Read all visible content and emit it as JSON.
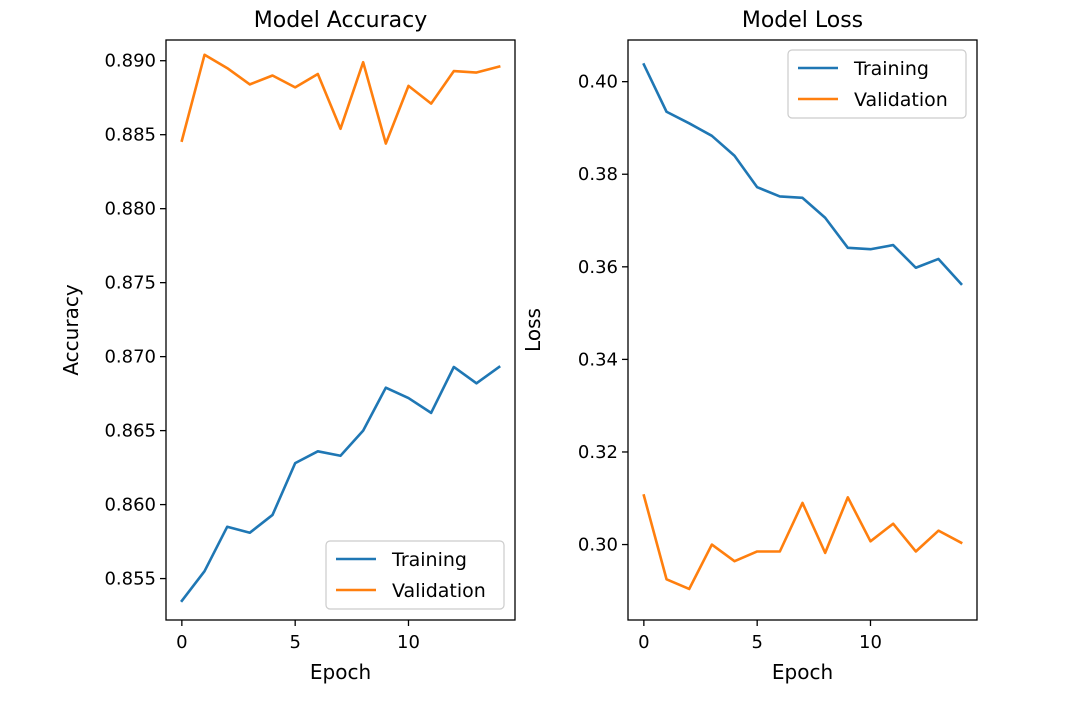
{
  "chart_data": [
    {
      "type": "line",
      "title": "Model Accuracy",
      "xlabel": "Epoch",
      "ylabel": "Accuracy",
      "xlim": [
        -0.7,
        14.7
      ],
      "ylim": [
        0.8522,
        0.8914
      ],
      "xticks": [
        0,
        5,
        10
      ],
      "yticks": [
        0.855,
        0.86,
        0.865,
        0.87,
        0.875,
        0.88,
        0.885,
        0.89
      ],
      "x": [
        0,
        1,
        2,
        3,
        4,
        5,
        6,
        7,
        8,
        9,
        10,
        11,
        12,
        13,
        14
      ],
      "series": [
        {
          "name": "Training",
          "color": "#1f77b4",
          "values": [
            0.8535,
            0.8555,
            0.8585,
            0.8581,
            0.8593,
            0.8628,
            0.8636,
            0.8633,
            0.865,
            0.8679,
            0.8672,
            0.8662,
            0.8693,
            0.8682,
            0.8693
          ]
        },
        {
          "name": "Validation",
          "color": "#ff7f0e",
          "values": [
            0.8846,
            0.8904,
            0.8895,
            0.8884,
            0.889,
            0.8882,
            0.8891,
            0.8854,
            0.8899,
            0.8844,
            0.8883,
            0.8871,
            0.8893,
            0.8892,
            0.8896
          ]
        }
      ],
      "legend": "lower-right",
      "grid": false
    },
    {
      "type": "line",
      "title": "Model Loss",
      "xlabel": "Epoch",
      "ylabel": "Loss",
      "xlim": [
        -0.7,
        14.7
      ],
      "ylim": [
        0.2837,
        0.409
      ],
      "xticks": [
        0,
        5,
        10
      ],
      "yticks": [
        0.3,
        0.32,
        0.34,
        0.36,
        0.38,
        0.4
      ],
      "x": [
        0,
        1,
        2,
        3,
        4,
        5,
        6,
        7,
        8,
        9,
        10,
        11,
        12,
        13,
        14
      ],
      "series": [
        {
          "name": "Training",
          "color": "#1f77b4",
          "values": [
            0.4037,
            0.3935,
            0.391,
            0.3883,
            0.384,
            0.3772,
            0.3752,
            0.3749,
            0.3706,
            0.3641,
            0.3638,
            0.3647,
            0.3598,
            0.3617,
            0.3563
          ]
        },
        {
          "name": "Validation",
          "color": "#ff7f0e",
          "values": [
            0.3106,
            0.2925,
            0.2904,
            0.3,
            0.2964,
            0.2985,
            0.2985,
            0.309,
            0.2982,
            0.3102,
            0.3007,
            0.3045,
            0.2985,
            0.303,
            0.3004
          ]
        }
      ],
      "legend": "upper-right",
      "grid": false
    }
  ]
}
